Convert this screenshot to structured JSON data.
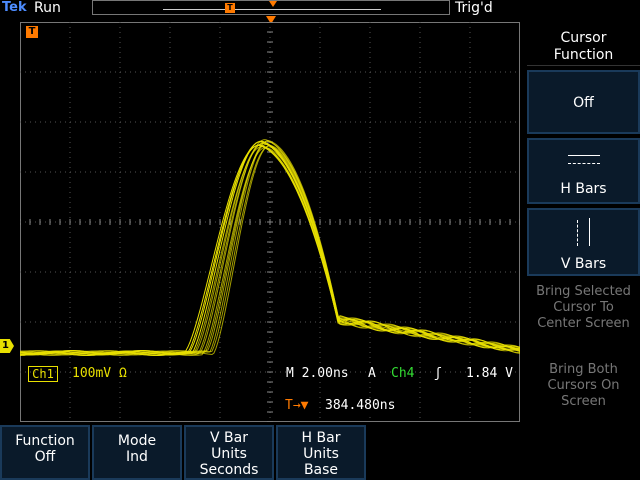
{
  "status": {
    "brand": "Tek",
    "acquisition_state": "Run",
    "trigger_state": "Trig'd"
  },
  "markers": {
    "trigger_position_label": "T",
    "ground_marker_label": "1"
  },
  "readouts": {
    "channel": "Ch1",
    "volts_per_div": "100mV Ω",
    "timebase": "M 2.00ns",
    "trigger_source_prefix": "A",
    "trigger_channel": "Ch4",
    "trigger_slope_symbol": "ʃ",
    "trigger_level": "1.84 V",
    "trigger_position_prefix": "T→▼",
    "trigger_position": "384.480ns"
  },
  "side_menu": {
    "title": "Cursor Function",
    "items": [
      {
        "label": "Off",
        "icon": "none"
      },
      {
        "label": "H Bars",
        "icon": "h-bars-icon"
      },
      {
        "label": "V Bars",
        "icon": "v-bars-icon"
      },
      {
        "label": "Bring Selected Cursor To Center Screen",
        "icon": "none"
      },
      {
        "label": "Bring Both Cursors On Screen",
        "icon": "none"
      }
    ]
  },
  "bottom_menu": [
    {
      "line1": "Function",
      "line2": "Off"
    },
    {
      "line1": "Mode",
      "line2": "Ind"
    },
    {
      "line1": "V Bar",
      "line2": "Units",
      "line3": "Seconds"
    },
    {
      "line1": "H Bar",
      "line2": "Units",
      "line3": "Base"
    }
  ],
  "colors": {
    "ch1_trace": "#e8e000",
    "ch4": "#33dd33",
    "trigger_marker": "#ff7a00",
    "grid": "#555555"
  }
}
